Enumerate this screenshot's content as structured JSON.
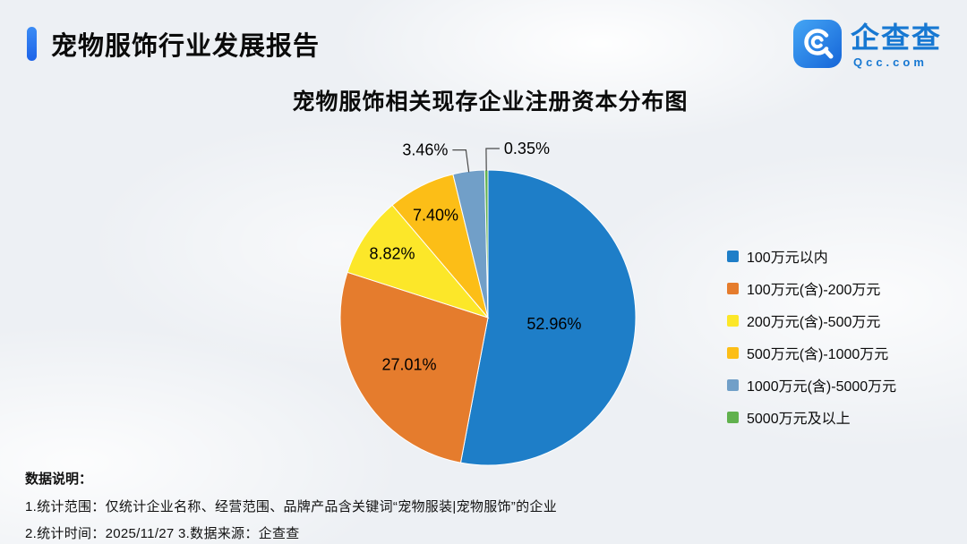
{
  "header": {
    "title": "宠物服饰行业发展报告"
  },
  "logo": {
    "name": "企查查",
    "domain": "Qcc.com"
  },
  "chart_data": {
    "type": "pie",
    "title": "宠物服饰相关现存企业注册资本分布图",
    "value_unit": "%",
    "legend_position": "right",
    "start_angle_deg": 0,
    "direction": "clockwise",
    "slices": [
      {
        "label": "100万元以内",
        "value": 52.96,
        "color": "#1e7ec8",
        "label_pos": "inside"
      },
      {
        "label": "100万元(含)-200万元",
        "value": 27.01,
        "color": "#e57c2d",
        "label_pos": "inside"
      },
      {
        "label": "200万元(含)-500万元",
        "value": 8.82,
        "color": "#fce729",
        "label_pos": "inside"
      },
      {
        "label": "500万元(含)-1000万元",
        "value": 7.4,
        "color": "#fcbe17",
        "label_pos": "inside"
      },
      {
        "label": "1000万元(含)-5000万元",
        "value": 3.46,
        "color": "#719fc8",
        "label_pos": "outside",
        "label_side": "left"
      },
      {
        "label": "5000万元及以上",
        "value": 0.35,
        "color": "#61b14e",
        "label_pos": "outside",
        "label_side": "right"
      }
    ]
  },
  "footer": {
    "heading": "数据说明：",
    "line1": "1.统计范围：仅统计企业名称、经营范围、品牌产品含关键词“宠物服装|宠物服饰”的企业",
    "line2": "2.统计时间：2025/11/27  3.数据来源：企查查"
  }
}
